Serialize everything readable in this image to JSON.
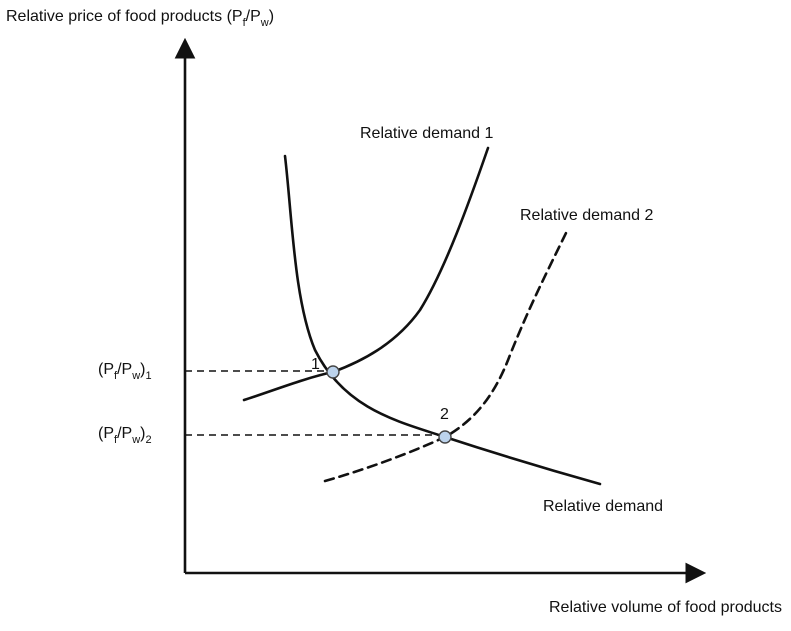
{
  "y_axis_label": {
    "main": "Relative price of food products (P",
    "sub1": "f",
    "mid": "/P",
    "sub2": "w",
    "end": ")"
  },
  "x_axis_label": "Relative volume of food products",
  "price_level_1": {
    "open": "(P",
    "sub1": "f",
    "mid": "/P",
    "sub2": "w",
    "close": ")",
    "index": "1"
  },
  "price_level_2": {
    "open": "(P",
    "sub1": "f",
    "mid": "/P",
    "sub2": "w",
    "close": ")",
    "index": "2"
  },
  "curves": {
    "supply_label": "Relative demand",
    "demand_1_label": "Relative demand 1",
    "demand_2_label": "Relative demand 2"
  },
  "equilibria": {
    "point_1": "1",
    "point_2": "2"
  },
  "colors": {
    "line": "#111111",
    "marker_fill": "#bcd3ec"
  }
}
